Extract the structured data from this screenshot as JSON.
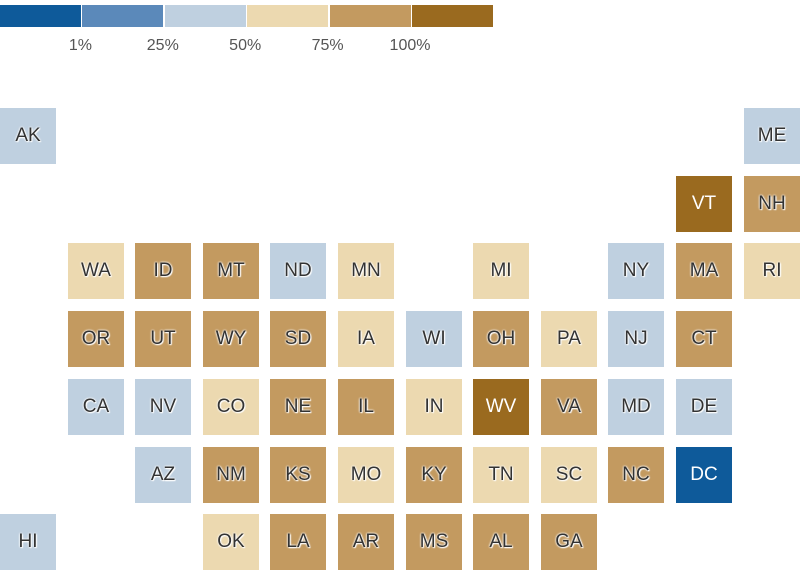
{
  "legend": {
    "colors": [
      "#0e5a9a",
      "#5b89ba",
      "#bfd0e0",
      "#ecd9b0",
      "#c39a60",
      "#9a6a1f"
    ],
    "ticks": [
      "1%",
      "25%",
      "50%",
      "75%",
      "100%"
    ]
  },
  "bin_colors": {
    "1": "#0e5a9a",
    "2": "#5b89ba",
    "3": "#bfd0e0",
    "4": "#ecd9b0",
    "5": "#c39a60",
    "6": "#9a6a1f"
  },
  "states": [
    {
      "abbr": "AK",
      "col": 0,
      "row": 0,
      "bin": 3
    },
    {
      "abbr": "ME",
      "col": 11,
      "row": 0,
      "bin": 3
    },
    {
      "abbr": "VT",
      "col": 10,
      "row": 1,
      "bin": 6
    },
    {
      "abbr": "NH",
      "col": 11,
      "row": 1,
      "bin": 5
    },
    {
      "abbr": "WA",
      "col": 1,
      "row": 2,
      "bin": 4
    },
    {
      "abbr": "ID",
      "col": 2,
      "row": 2,
      "bin": 5
    },
    {
      "abbr": "MT",
      "col": 3,
      "row": 2,
      "bin": 5
    },
    {
      "abbr": "ND",
      "col": 4,
      "row": 2,
      "bin": 3
    },
    {
      "abbr": "MN",
      "col": 5,
      "row": 2,
      "bin": 4
    },
    {
      "abbr": "MI",
      "col": 7,
      "row": 2,
      "bin": 4
    },
    {
      "abbr": "NY",
      "col": 9,
      "row": 2,
      "bin": 3
    },
    {
      "abbr": "MA",
      "col": 10,
      "row": 2,
      "bin": 5
    },
    {
      "abbr": "RI",
      "col": 11,
      "row": 2,
      "bin": 4
    },
    {
      "abbr": "OR",
      "col": 1,
      "row": 3,
      "bin": 5
    },
    {
      "abbr": "UT",
      "col": 2,
      "row": 3,
      "bin": 5
    },
    {
      "abbr": "WY",
      "col": 3,
      "row": 3,
      "bin": 5
    },
    {
      "abbr": "SD",
      "col": 4,
      "row": 3,
      "bin": 5
    },
    {
      "abbr": "IA",
      "col": 5,
      "row": 3,
      "bin": 4
    },
    {
      "abbr": "WI",
      "col": 6,
      "row": 3,
      "bin": 3
    },
    {
      "abbr": "OH",
      "col": 7,
      "row": 3,
      "bin": 5
    },
    {
      "abbr": "PA",
      "col": 8,
      "row": 3,
      "bin": 4
    },
    {
      "abbr": "NJ",
      "col": 9,
      "row": 3,
      "bin": 3
    },
    {
      "abbr": "CT",
      "col": 10,
      "row": 3,
      "bin": 5
    },
    {
      "abbr": "CA",
      "col": 1,
      "row": 4,
      "bin": 3
    },
    {
      "abbr": "NV",
      "col": 2,
      "row": 4,
      "bin": 3
    },
    {
      "abbr": "CO",
      "col": 3,
      "row": 4,
      "bin": 4
    },
    {
      "abbr": "NE",
      "col": 4,
      "row": 4,
      "bin": 5
    },
    {
      "abbr": "IL",
      "col": 5,
      "row": 4,
      "bin": 5
    },
    {
      "abbr": "IN",
      "col": 6,
      "row": 4,
      "bin": 4
    },
    {
      "abbr": "WV",
      "col": 7,
      "row": 4,
      "bin": 6
    },
    {
      "abbr": "VA",
      "col": 8,
      "row": 4,
      "bin": 5
    },
    {
      "abbr": "MD",
      "col": 9,
      "row": 4,
      "bin": 3
    },
    {
      "abbr": "DE",
      "col": 10,
      "row": 4,
      "bin": 3
    },
    {
      "abbr": "AZ",
      "col": 2,
      "row": 5,
      "bin": 3
    },
    {
      "abbr": "NM",
      "col": 3,
      "row": 5,
      "bin": 5
    },
    {
      "abbr": "KS",
      "col": 4,
      "row": 5,
      "bin": 5
    },
    {
      "abbr": "MO",
      "col": 5,
      "row": 5,
      "bin": 4
    },
    {
      "abbr": "KY",
      "col": 6,
      "row": 5,
      "bin": 5
    },
    {
      "abbr": "TN",
      "col": 7,
      "row": 5,
      "bin": 4
    },
    {
      "abbr": "SC",
      "col": 8,
      "row": 5,
      "bin": 4
    },
    {
      "abbr": "NC",
      "col": 9,
      "row": 5,
      "bin": 5
    },
    {
      "abbr": "DC",
      "col": 10,
      "row": 5,
      "bin": 1
    },
    {
      "abbr": "HI",
      "col": 0,
      "row": 6,
      "bin": 3
    },
    {
      "abbr": "OK",
      "col": 3,
      "row": 6,
      "bin": 4
    },
    {
      "abbr": "LA",
      "col": 4,
      "row": 6,
      "bin": 5
    },
    {
      "abbr": "AR",
      "col": 5,
      "row": 6,
      "bin": 5
    },
    {
      "abbr": "MS",
      "col": 6,
      "row": 6,
      "bin": 5
    },
    {
      "abbr": "AL",
      "col": 7,
      "row": 6,
      "bin": 5
    },
    {
      "abbr": "GA",
      "col": 8,
      "row": 6,
      "bin": 5
    }
  ]
}
